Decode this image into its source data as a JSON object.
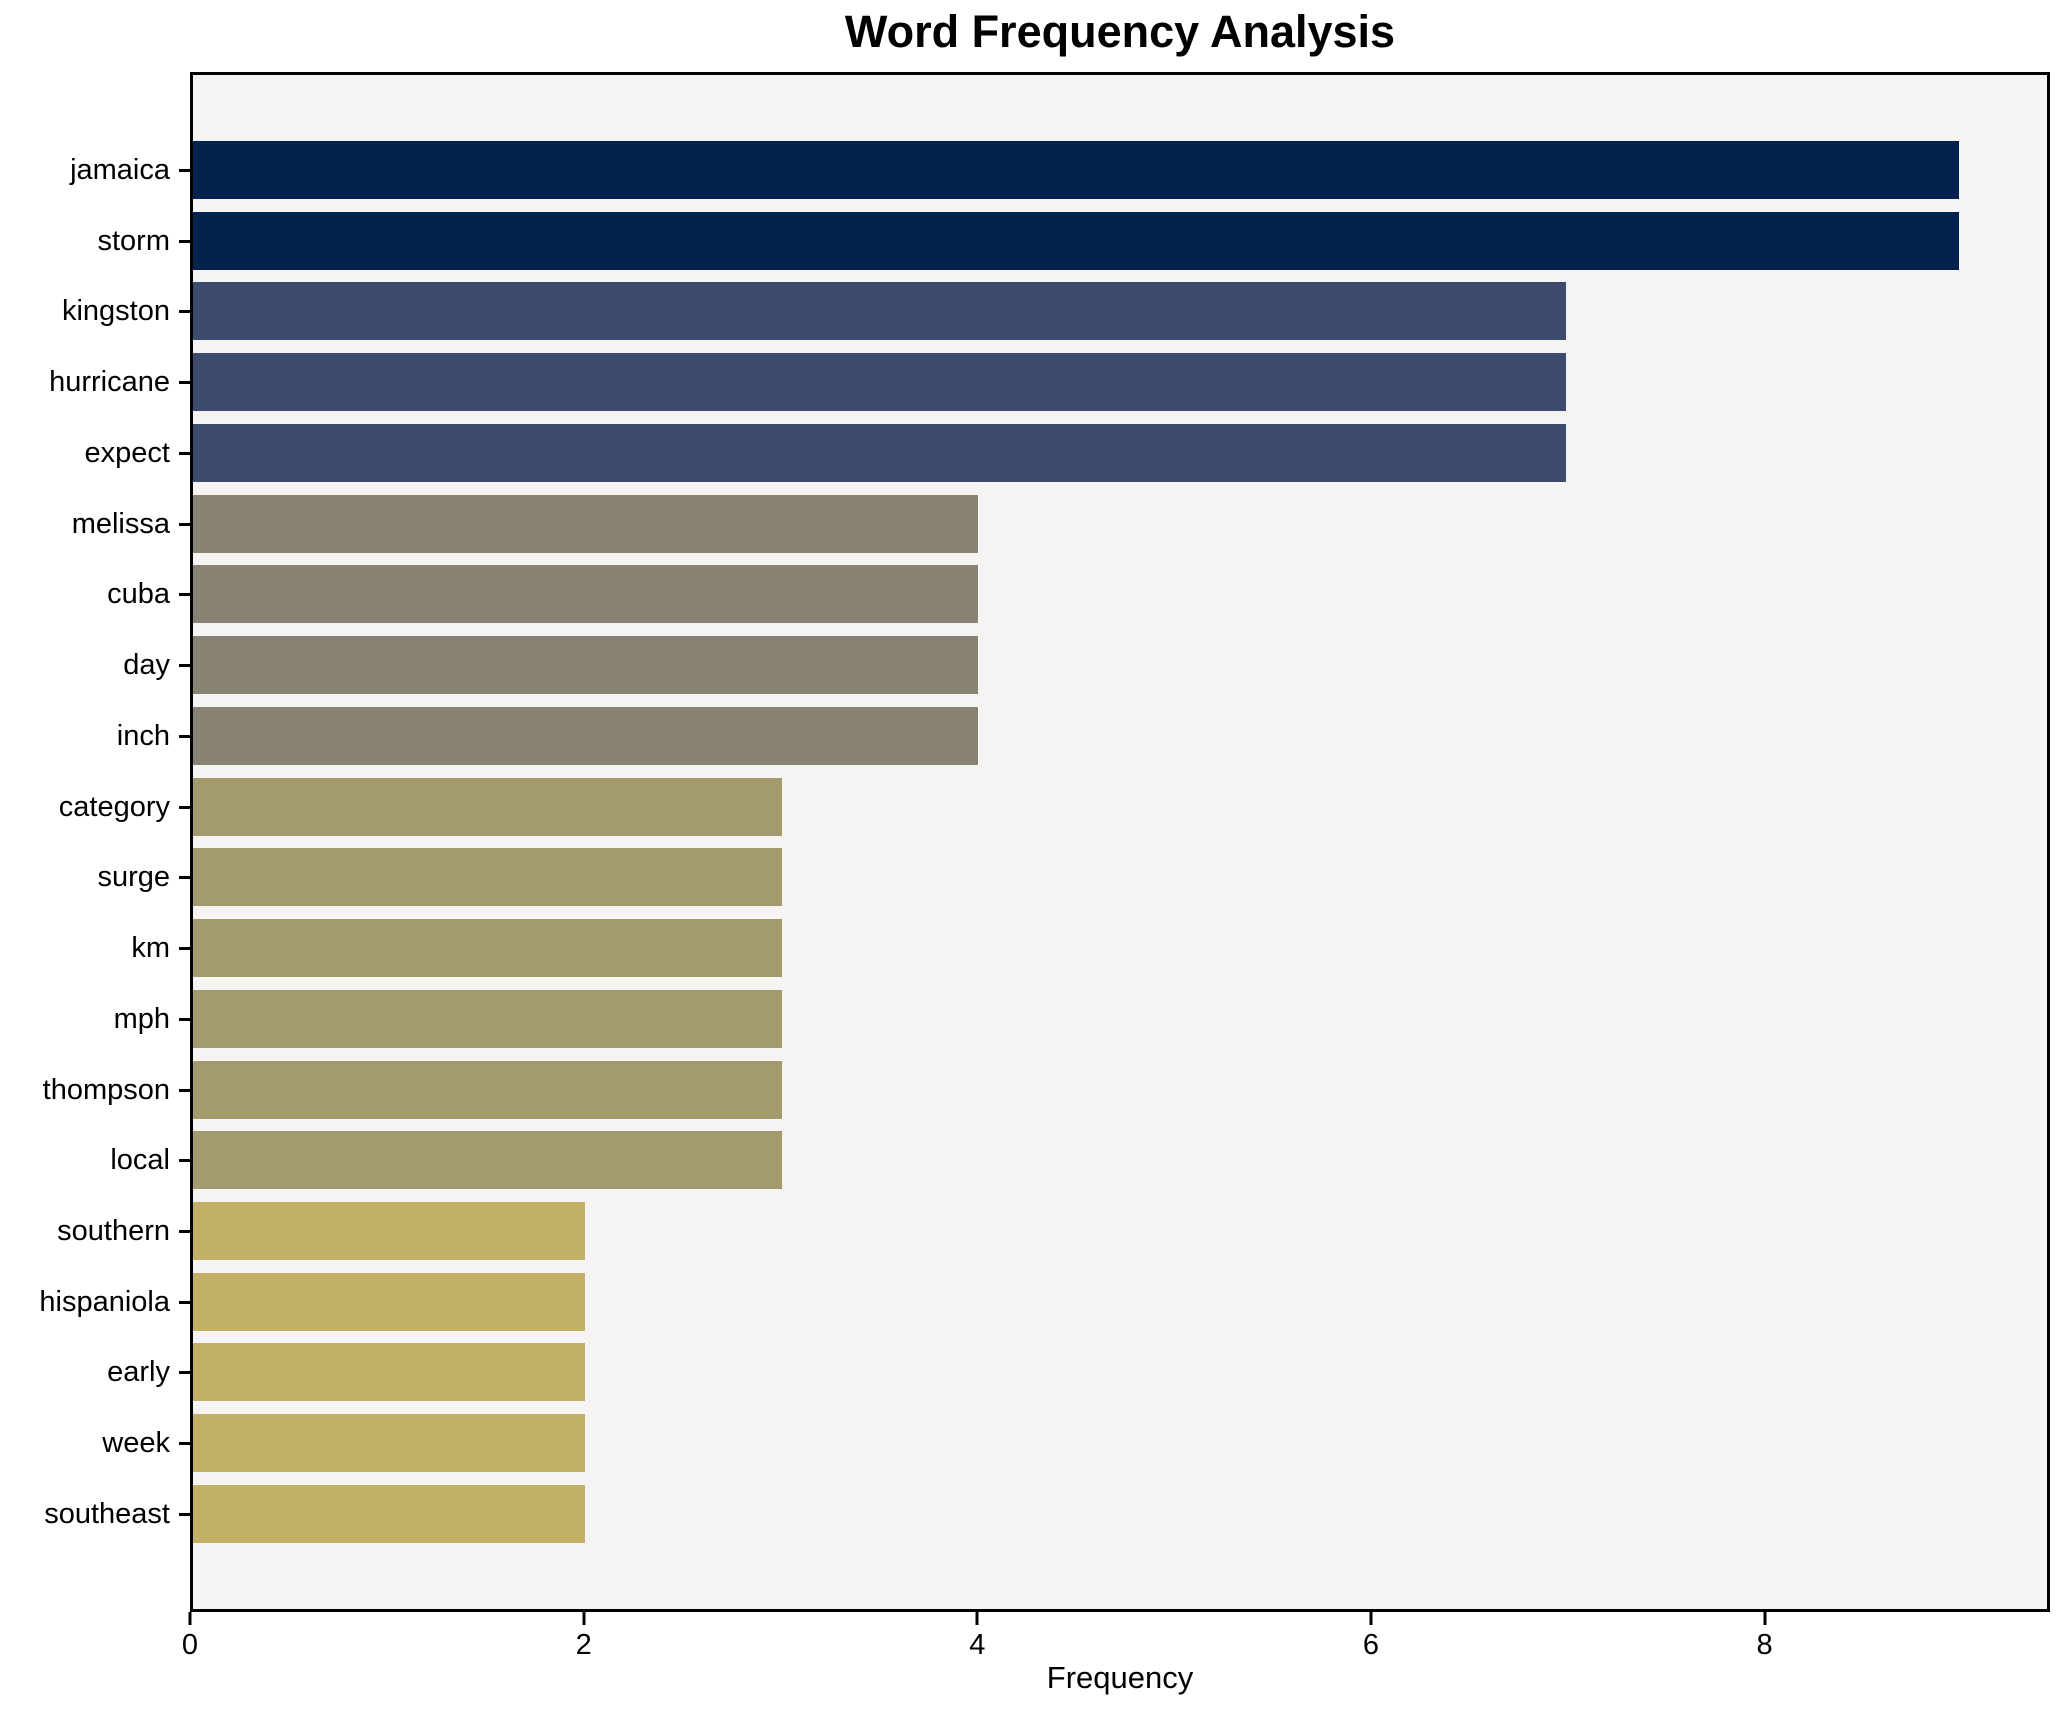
{
  "title": "Word Frequency Analysis",
  "chart_data": {
    "type": "bar",
    "orientation": "horizontal",
    "title": "Word Frequency Analysis",
    "xlabel": "Frequency",
    "ylabel": "",
    "categories": [
      "jamaica",
      "storm",
      "kingston",
      "hurricane",
      "expect",
      "melissa",
      "cuba",
      "day",
      "inch",
      "category",
      "surge",
      "km",
      "mph",
      "thompson",
      "local",
      "southern",
      "hispaniola",
      "early",
      "week",
      "southeast"
    ],
    "values": [
      9,
      9,
      7,
      7,
      7,
      4,
      4,
      4,
      4,
      3,
      3,
      3,
      3,
      3,
      3,
      2,
      2,
      2,
      2,
      2
    ],
    "bar_colors": [
      "#02234e",
      "#02234e",
      "#3c4b6e",
      "#3c4b6e",
      "#3c4b6e",
      "#888272",
      "#888272",
      "#888272",
      "#888272",
      "#a39a6d",
      "#a39a6d",
      "#a39a6d",
      "#a39a6d",
      "#a39a6d",
      "#a39a6d",
      "#c2b067",
      "#c2b067",
      "#c2b067",
      "#c2b067",
      "#c2b067"
    ],
    "xticks": [
      0,
      2,
      4,
      6,
      8
    ],
    "xlim": [
      0,
      9.45
    ],
    "grid": false,
    "legend_position": "none",
    "plot_background": "#f5f4f2",
    "figure_background": "#ffffff",
    "spine_color": "#000000"
  }
}
